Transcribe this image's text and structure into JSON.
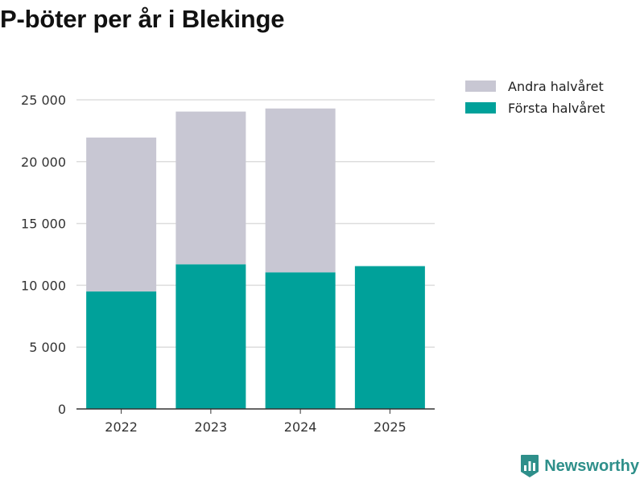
{
  "chart_data": {
    "type": "bar",
    "stacked": true,
    "title": "P-böter per år i Blekinge",
    "xlabel": "",
    "ylabel": "",
    "categories": [
      "2022",
      "2023",
      "2024",
      "2025"
    ],
    "series": [
      {
        "name": "Första halvåret",
        "color": "#00a19a",
        "values": [
          9500,
          11700,
          11050,
          11550
        ]
      },
      {
        "name": "Andra halvåret",
        "color": "#c8c7d3",
        "values": [
          12450,
          12350,
          13250,
          0
        ]
      }
    ],
    "legend_order": [
      "Andra halvåret",
      "Första halvåret"
    ],
    "ylim": [
      0,
      25000
    ],
    "yticks": [
      0,
      5000,
      10000,
      15000,
      20000,
      25000
    ],
    "ytick_labels": [
      "0",
      "5 000",
      "10 000",
      "15 000",
      "20 000",
      "25 000"
    ],
    "grid": true,
    "legend_position": "top-right"
  },
  "branding": {
    "name": "Newsworthy",
    "color": "#2e8f8a",
    "icon": "newsworthy-logo-icon"
  }
}
